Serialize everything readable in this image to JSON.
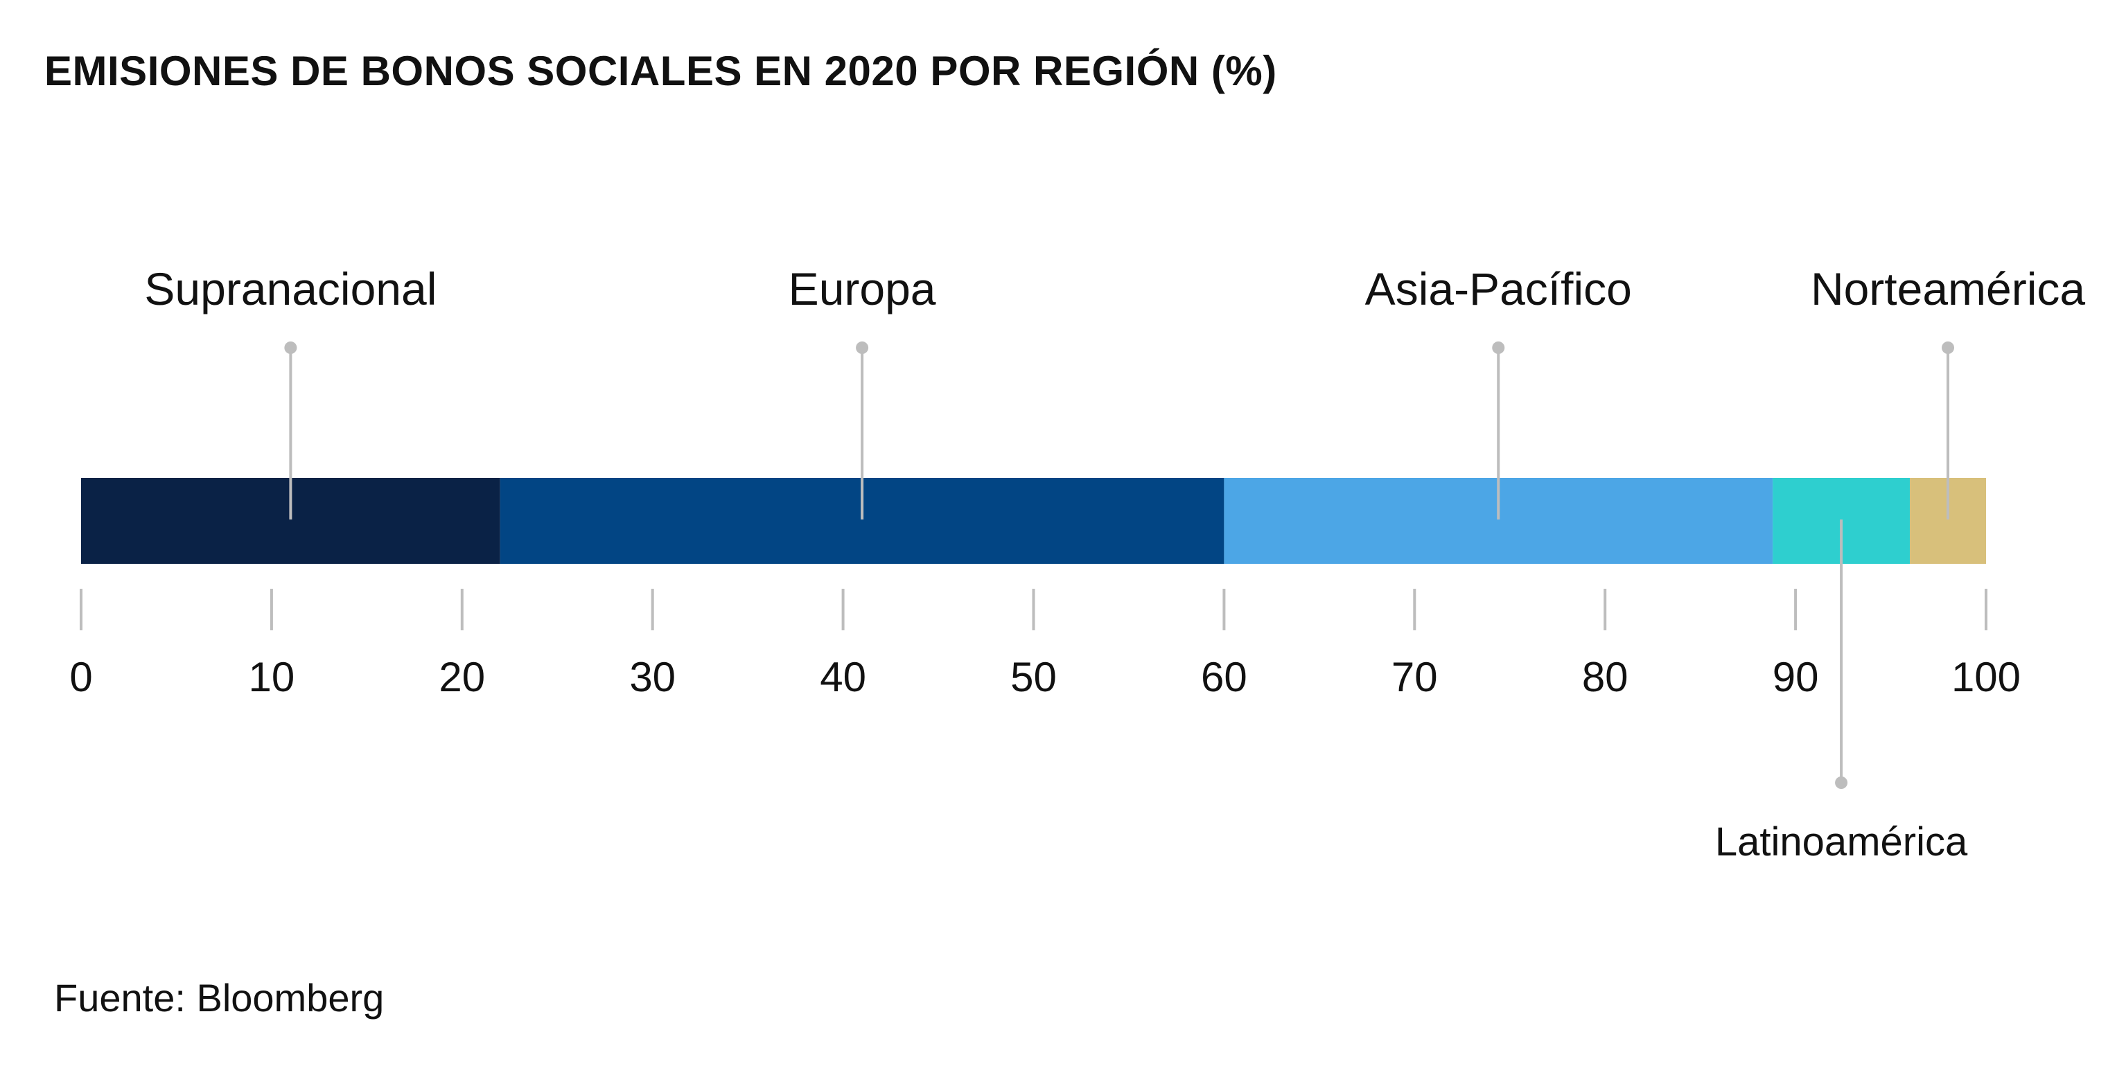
{
  "chart_data": {
    "type": "bar",
    "orientation": "horizontal-stacked",
    "title": "EMISIONES DE BONOS SOCIALES EN 2020 POR REGIÓN (%)",
    "xlim": [
      0,
      100
    ],
    "xticks": [
      "0",
      "10",
      "20",
      "30",
      "40",
      "50",
      "60",
      "70",
      "80",
      "90",
      "100"
    ],
    "grid": false,
    "series": [
      {
        "name": "Supranacional",
        "value": 22,
        "color": "#0a2246",
        "label_position": "above"
      },
      {
        "name": "Europa",
        "value": 38,
        "color": "#024584",
        "label_position": "above"
      },
      {
        "name": "Asia-Pacífico",
        "value": 28.8,
        "color": "#4ca6e6",
        "label_position": "above"
      },
      {
        "name": "Latinoamérica",
        "value": 7.2,
        "color": "#2ecfcf",
        "label_position": "below"
      },
      {
        "name": "Norteamérica",
        "value": 4,
        "color": "#d8c07b",
        "label_position": "above"
      }
    ],
    "source": "Fuente: Bloomberg"
  },
  "colors": {
    "leader": "#bdbdbd",
    "tick": "#bdbdbd",
    "text": "#111111"
  }
}
